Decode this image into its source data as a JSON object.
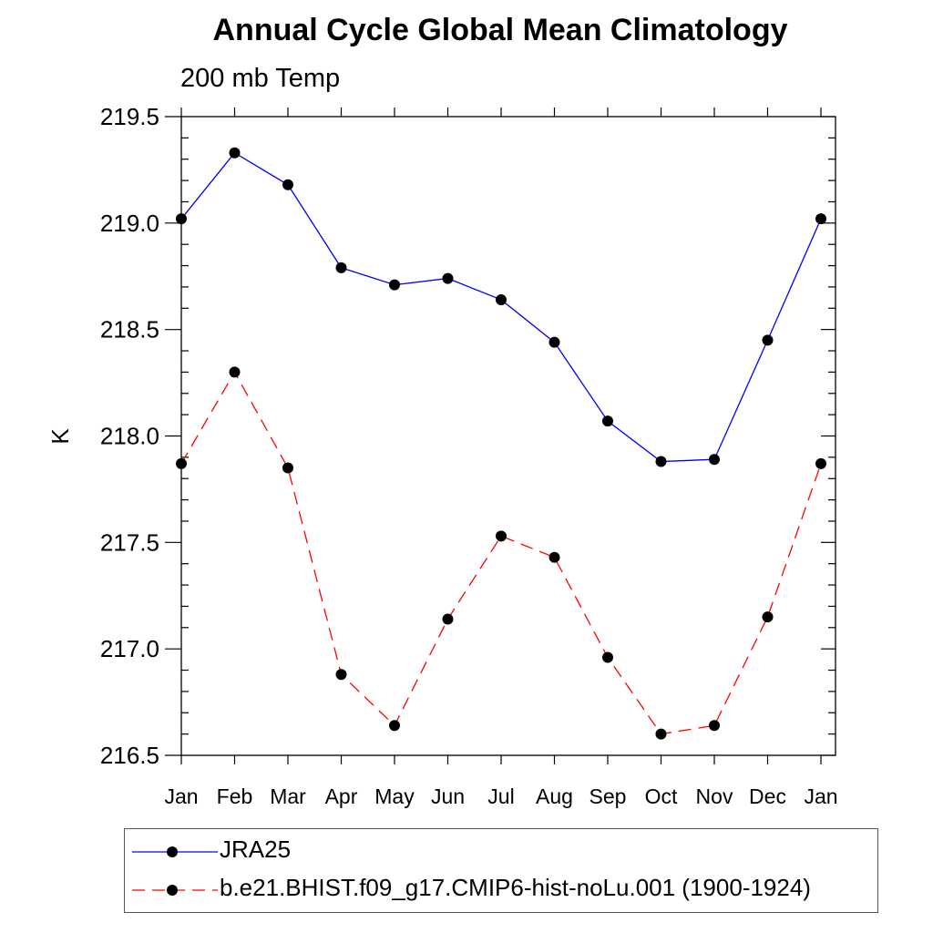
{
  "chart_data": {
    "type": "line",
    "title": "Annual Cycle Global Mean Climatology",
    "subtitle": "200 mb Temp",
    "xlabel": "",
    "ylabel": "K",
    "categories": [
      "Jan",
      "Feb",
      "Mar",
      "Apr",
      "May",
      "Jun",
      "Jul",
      "Aug",
      "Sep",
      "Oct",
      "Nov",
      "Dec",
      "Jan"
    ],
    "ylim": [
      216.5,
      219.5
    ],
    "yticks": [
      "216.5",
      "217.0",
      "217.5",
      "218.0",
      "218.5",
      "219.0",
      "219.5"
    ],
    "grid": false,
    "legend_placement": "bottom",
    "series": [
      {
        "name": "JRA25",
        "color": "#0000ff",
        "style": "solid",
        "values": [
          219.02,
          219.33,
          219.18,
          218.79,
          218.71,
          218.74,
          218.64,
          218.44,
          218.07,
          217.88,
          217.89,
          218.45,
          219.02
        ]
      },
      {
        "name": "b.e21.BHIST.f09_g17.CMIP6-hist-noLu.001 (1900-1924)",
        "color": "#ff0000",
        "style": "dashed",
        "values": [
          217.87,
          218.3,
          217.85,
          216.88,
          216.64,
          217.14,
          217.53,
          217.43,
          216.96,
          216.6,
          216.64,
          217.15,
          217.87
        ]
      }
    ]
  }
}
